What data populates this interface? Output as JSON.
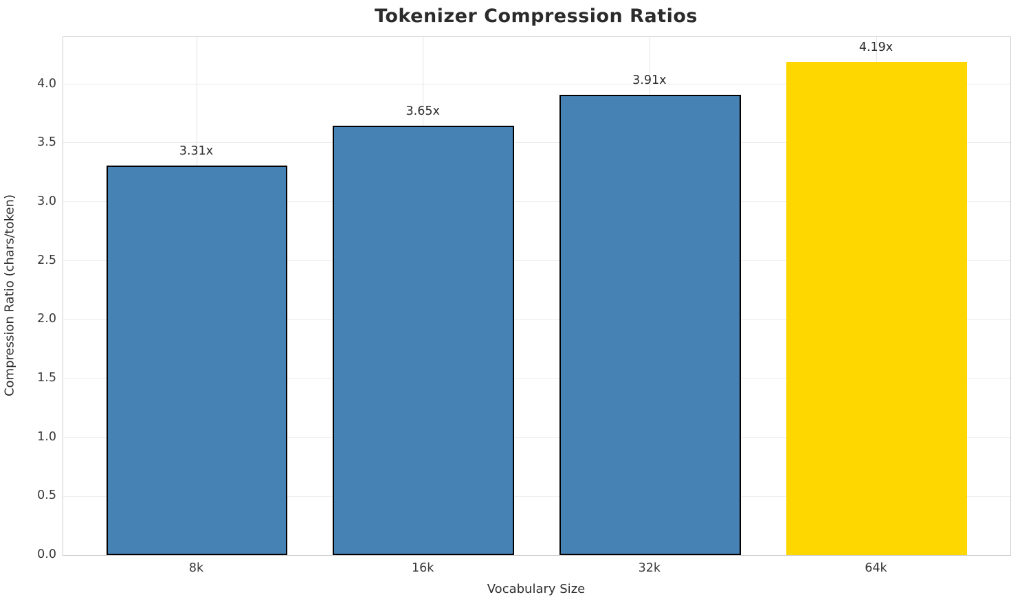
{
  "chart_data": {
    "type": "bar",
    "title": "Tokenizer Compression Ratios",
    "xlabel": "Vocabulary Size",
    "ylabel": "Compression Ratio (chars/token)",
    "categories": [
      "8k",
      "16k",
      "32k",
      "64k"
    ],
    "values": [
      3.31,
      3.65,
      3.91,
      4.19
    ],
    "value_labels": [
      "3.31x",
      "3.65x",
      "3.91x",
      "4.19x"
    ],
    "bar_colors": [
      "#4682b4",
      "#4682b4",
      "#4682b4",
      "#ffd700"
    ],
    "bar_edge_colors": [
      "#000000",
      "#000000",
      "#000000",
      "none"
    ],
    "highlighted_category": "64k",
    "ylim": [
      0,
      4.4
    ],
    "ytick_labels": [
      "0.0",
      "0.5",
      "1.0",
      "1.5",
      "2.0",
      "2.5",
      "3.0",
      "3.5",
      "4.0"
    ],
    "ytick_values": [
      0,
      0.5,
      1.0,
      1.5,
      2.0,
      2.5,
      3.0,
      3.5,
      4.0
    ],
    "grid": true,
    "legend": "none",
    "accent_color": "#ffd700",
    "series_color": "#4682b4"
  }
}
